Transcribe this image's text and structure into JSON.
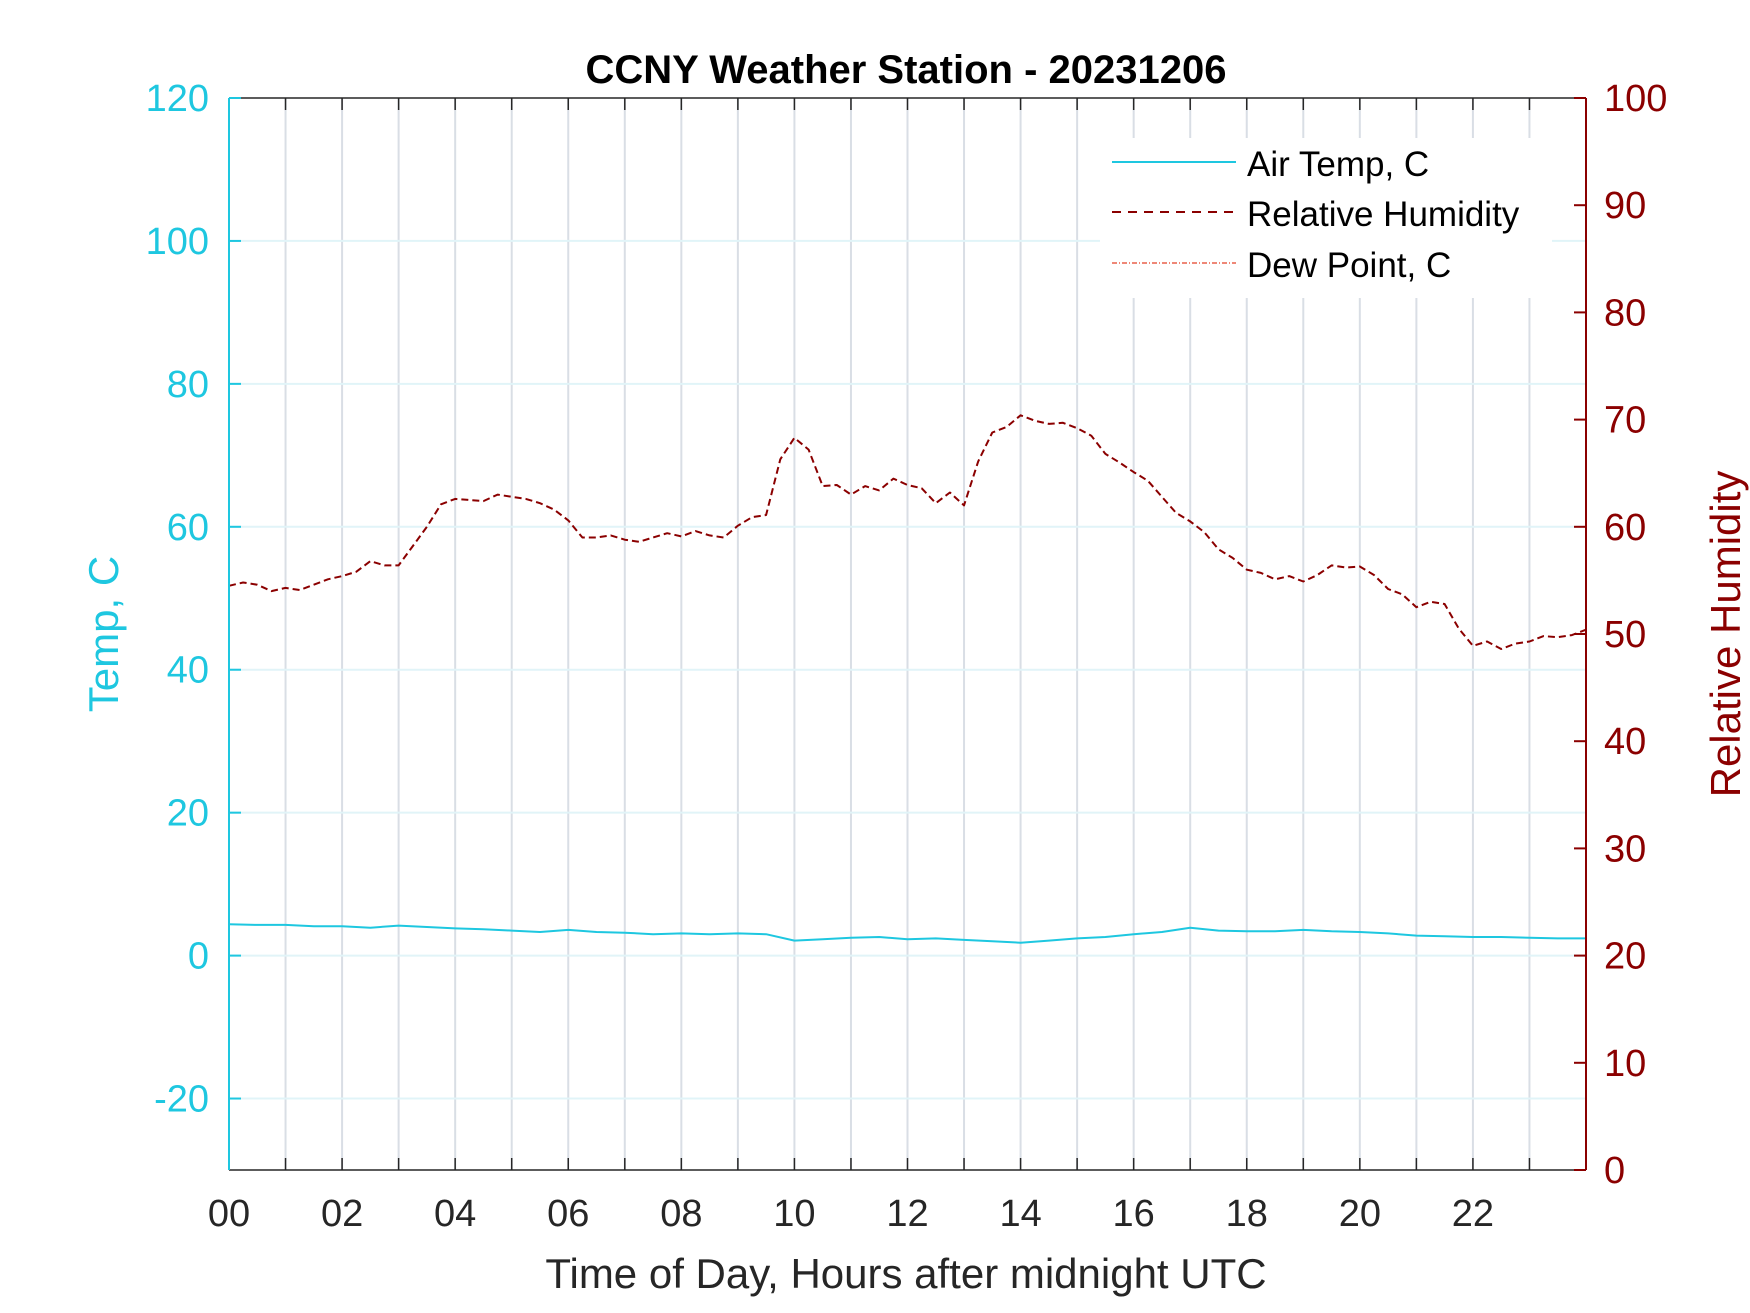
{
  "chart_data": {
    "type": "line",
    "title": "CCNY Weather Station - 20231206",
    "xlabel": "Time of Day, Hours after midnight UTC",
    "ylabel_left": "Temp, C",
    "ylabel_right": "Relative Humidity",
    "xlim": [
      0,
      24
    ],
    "ylim_left": [
      -30,
      120
    ],
    "ylim_right": [
      0,
      100
    ],
    "x_ticks": [
      0,
      2,
      4,
      6,
      8,
      10,
      12,
      14,
      16,
      18,
      20,
      22
    ],
    "x_tick_labels": [
      "00",
      "02",
      "04",
      "06",
      "08",
      "10",
      "12",
      "14",
      "16",
      "18",
      "20",
      "22"
    ],
    "y_left_ticks": [
      -20,
      0,
      20,
      40,
      60,
      80,
      100,
      120
    ],
    "y_left_tick_labels": [
      "-20",
      "0",
      "20",
      "40",
      "60",
      "80",
      "100",
      "120"
    ],
    "y_right_ticks": [
      0,
      10,
      20,
      30,
      40,
      50,
      60,
      70,
      80,
      90,
      100
    ],
    "y_right_tick_labels": [
      "0",
      "10",
      "20",
      "30",
      "40",
      "50",
      "60",
      "70",
      "80",
      "90",
      "100"
    ],
    "grid": true,
    "legend_position": "top-right",
    "colors": {
      "air_temp": "#1ec7e0",
      "humidity": "#8b0000",
      "dew_point": "#e8604c",
      "axis_left": "#1ec7e0",
      "axis_right": "#8b0000",
      "grid": "#d9dee5"
    },
    "series": [
      {
        "name": "Air Temp, C",
        "axis": "left",
        "style": "solid",
        "x": [
          0,
          0.5,
          1,
          1.5,
          2,
          2.5,
          3,
          3.5,
          4,
          4.5,
          5,
          5.5,
          6,
          6.5,
          7,
          7.5,
          8,
          8.5,
          9,
          9.5,
          10,
          10.5,
          11,
          11.5,
          12,
          12.5,
          13,
          13.5,
          14,
          14.5,
          15,
          15.5,
          16,
          16.5,
          17,
          17.5,
          18,
          18.5,
          19,
          19.5,
          20,
          20.5,
          21,
          21.5,
          22,
          22.5,
          23,
          23.5,
          24
        ],
        "values": [
          4.4,
          4.3,
          4.3,
          4.1,
          4.1,
          3.9,
          4.2,
          4.0,
          3.8,
          3.7,
          3.5,
          3.3,
          3.6,
          3.3,
          3.2,
          3.0,
          3.1,
          3.0,
          3.1,
          3.0,
          2.1,
          2.3,
          2.5,
          2.6,
          2.3,
          2.4,
          2.2,
          2.0,
          1.8,
          2.1,
          2.4,
          2.6,
          3.0,
          3.3,
          3.9,
          3.5,
          3.4,
          3.4,
          3.6,
          3.4,
          3.3,
          3.1,
          2.8,
          2.7,
          2.6,
          2.6,
          2.5,
          2.4,
          2.4
        ]
      },
      {
        "name": "Relative Humidity",
        "axis": "right",
        "style": "dashed",
        "x": [
          0,
          0.25,
          0.5,
          0.75,
          1,
          1.25,
          1.5,
          1.75,
          2,
          2.25,
          2.5,
          2.75,
          3,
          3.25,
          3.5,
          3.75,
          4,
          4.25,
          4.5,
          4.75,
          5,
          5.25,
          5.5,
          5.75,
          6,
          6.25,
          6.5,
          6.75,
          7,
          7.25,
          7.5,
          7.75,
          8,
          8.25,
          8.5,
          8.75,
          9,
          9.25,
          9.5,
          9.75,
          10,
          10.25,
          10.5,
          10.75,
          11,
          11.25,
          11.5,
          11.75,
          12,
          12.25,
          12.5,
          12.75,
          13,
          13.25,
          13.5,
          13.75,
          14,
          14.25,
          14.5,
          14.75,
          15,
          15.25,
          15.5,
          15.75,
          16,
          16.25,
          16.5,
          16.75,
          17,
          17.25,
          17.5,
          17.75,
          18,
          18.25,
          18.5,
          18.75,
          19,
          19.25,
          19.5,
          19.75,
          20,
          20.25,
          20.5,
          20.75,
          21,
          21.25,
          21.5,
          21.75,
          22,
          22.25,
          22.5,
          22.75,
          23,
          23.25,
          23.5,
          23.75,
          24
        ],
        "values": [
          54.5,
          54.8,
          54.6,
          54.0,
          54.3,
          54.1,
          54.6,
          55.1,
          55.4,
          55.8,
          56.8,
          56.4,
          56.4,
          58.2,
          60.0,
          62.1,
          62.6,
          62.5,
          62.4,
          63.0,
          62.8,
          62.6,
          62.2,
          61.6,
          60.6,
          59.0,
          59.0,
          59.2,
          58.8,
          58.6,
          59.0,
          59.4,
          59.1,
          59.6,
          59.2,
          59.0,
          60.1,
          60.9,
          61.1,
          66.3,
          68.3,
          67.2,
          63.8,
          63.9,
          63.0,
          63.8,
          63.4,
          64.5,
          63.9,
          63.6,
          62.2,
          63.2,
          62.0,
          66.1,
          68.8,
          69.3,
          70.4,
          69.9,
          69.6,
          69.7,
          69.2,
          68.5,
          66.8,
          66.0,
          65.1,
          64.3,
          62.8,
          61.3,
          60.5,
          59.5,
          57.9,
          57.1,
          56.0,
          55.7,
          55.1,
          55.4,
          54.9,
          55.5,
          56.4,
          56.2,
          56.3,
          55.5,
          54.2,
          53.7,
          52.5,
          53.0,
          52.8,
          50.5,
          48.9,
          49.3,
          48.6,
          49.1,
          49.3,
          49.8,
          49.7,
          49.9,
          50.4
        ]
      },
      {
        "name": "Dew Point, C",
        "axis": "left",
        "style": "dash-dot",
        "x": [],
        "values": []
      }
    ]
  }
}
